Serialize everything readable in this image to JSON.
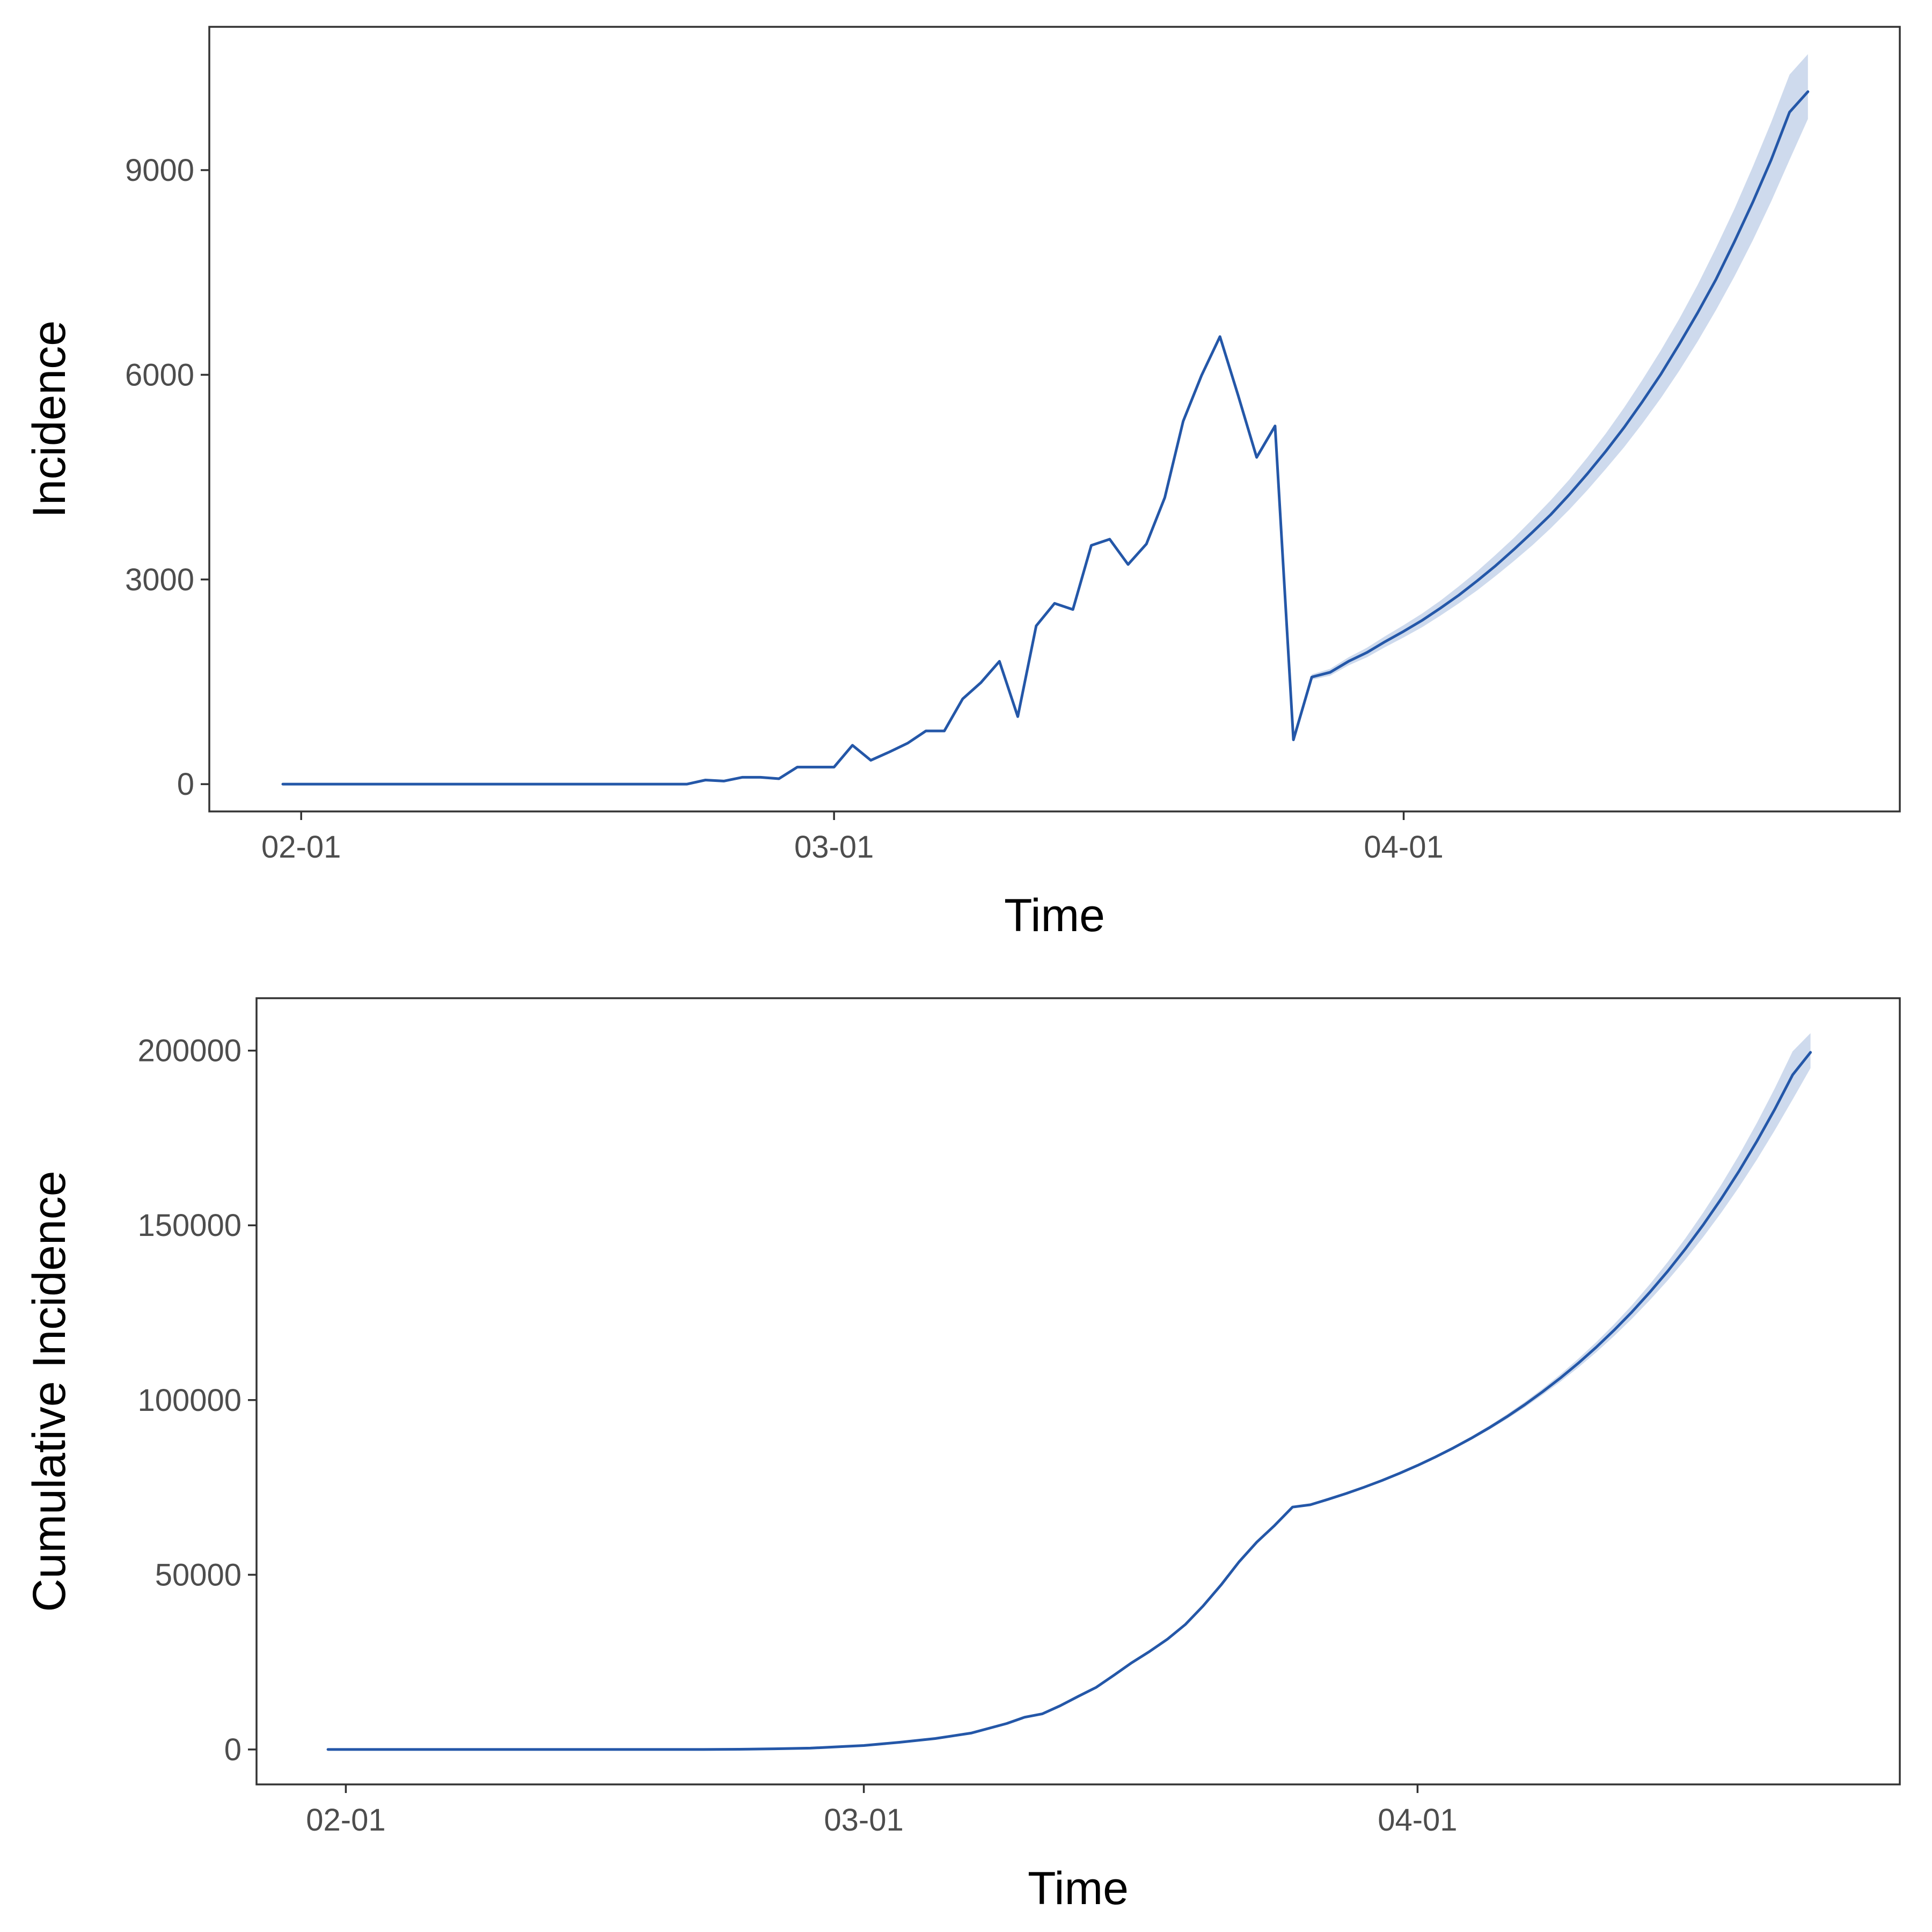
{
  "chart_data": [
    {
      "type": "line",
      "title": "",
      "xlabel": "Time",
      "ylabel": "Incidence",
      "x_axis": "date",
      "x_ticks": [
        "02-01",
        "03-01",
        "04-01"
      ],
      "x_tick_dates": [
        "2020-02-01",
        "2020-03-01",
        "2020-04-01"
      ],
      "xlim": [
        "2020-01-27",
        "2020-04-28"
      ],
      "ylim": [
        -400,
        11100
      ],
      "y_ticks": [
        0,
        3000,
        6000,
        9000
      ],
      "y_tick_labels": [
        "0",
        "3000",
        "6000",
        "9000"
      ],
      "grid": false,
      "line_color": "#2457a8",
      "band_color": "#c6d4ea",
      "series": [
        {
          "values": [
            [
              "2020-01-31",
              0
            ],
            [
              "2020-02-01",
              0
            ],
            [
              "2020-02-02",
              0
            ],
            [
              "2020-02-03",
              0
            ],
            [
              "2020-02-04",
              0
            ],
            [
              "2020-02-05",
              0
            ],
            [
              "2020-02-06",
              0
            ],
            [
              "2020-02-07",
              0
            ],
            [
              "2020-02-08",
              0
            ],
            [
              "2020-02-09",
              0
            ],
            [
              "2020-02-10",
              0
            ],
            [
              "2020-02-11",
              0
            ],
            [
              "2020-02-12",
              0
            ],
            [
              "2020-02-13",
              0
            ],
            [
              "2020-02-14",
              0
            ],
            [
              "2020-02-15",
              0
            ],
            [
              "2020-02-16",
              0
            ],
            [
              "2020-02-17",
              0
            ],
            [
              "2020-02-18",
              0
            ],
            [
              "2020-02-19",
              0
            ],
            [
              "2020-02-20",
              0
            ],
            [
              "2020-02-21",
              0
            ],
            [
              "2020-02-22",
              0
            ],
            [
              "2020-02-23",
              60
            ],
            [
              "2020-02-24",
              45
            ],
            [
              "2020-02-25",
              100
            ],
            [
              "2020-02-26",
              100
            ],
            [
              "2020-02-27",
              80
            ],
            [
              "2020-02-28",
              250
            ],
            [
              "2020-02-29",
              250
            ],
            [
              "2020-03-01",
              250
            ],
            [
              "2020-03-02",
              570
            ],
            [
              "2020-03-03",
              350
            ],
            [
              "2020-03-04",
              470
            ],
            [
              "2020-03-05",
              600
            ],
            [
              "2020-03-06",
              780
            ],
            [
              "2020-03-07",
              780
            ],
            [
              "2020-03-08",
              1250
            ],
            [
              "2020-03-09",
              1490
            ],
            [
              "2020-03-10",
              1800
            ],
            [
              "2020-03-11",
              990
            ],
            [
              "2020-03-12",
              2320
            ],
            [
              "2020-03-13",
              2650
            ],
            [
              "2020-03-14",
              2560
            ],
            [
              "2020-03-15",
              3500
            ],
            [
              "2020-03-16",
              3590
            ],
            [
              "2020-03-17",
              3220
            ],
            [
              "2020-03-18",
              3520
            ],
            [
              "2020-03-19",
              4200
            ],
            [
              "2020-03-20",
              5320
            ],
            [
              "2020-03-21",
              5990
            ],
            [
              "2020-03-22",
              6560
            ],
            [
              "2020-03-23",
              5690
            ],
            [
              "2020-03-24",
              4790
            ],
            [
              "2020-03-25",
              5250
            ],
            [
              "2020-03-26",
              650
            ],
            [
              "2020-03-27",
              1570
            ],
            [
              "2020-03-28",
              1640
            ],
            [
              "2020-03-29",
              1800
            ],
            [
              "2020-03-30",
              1930
            ],
            [
              "2020-03-31",
              2090
            ],
            [
              "2020-04-01",
              2240
            ],
            [
              "2020-04-02",
              2400
            ],
            [
              "2020-04-03",
              2580
            ],
            [
              "2020-04-04",
              2770
            ],
            [
              "2020-04-05",
              2980
            ],
            [
              "2020-04-06",
              3200
            ],
            [
              "2020-04-07",
              3440
            ],
            [
              "2020-04-08",
              3690
            ],
            [
              "2020-04-09",
              3950
            ],
            [
              "2020-04-10",
              4240
            ],
            [
              "2020-04-11",
              4550
            ],
            [
              "2020-04-12",
              4880
            ],
            [
              "2020-04-13",
              5230
            ],
            [
              "2020-04-14",
              5610
            ],
            [
              "2020-04-15",
              6010
            ],
            [
              "2020-04-16",
              6450
            ],
            [
              "2020-04-17",
              6910
            ],
            [
              "2020-04-18",
              7400
            ],
            [
              "2020-04-19",
              7950
            ],
            [
              "2020-04-20",
              8530
            ],
            [
              "2020-04-21",
              9150
            ],
            [
              "2020-04-22",
              9850
            ],
            [
              "2020-04-23",
              10150
            ]
          ],
          "ci_start": "2020-03-27",
          "lower": [
            1530,
            1590,
            1740,
            1860,
            2010,
            2150,
            2300,
            2470,
            2650,
            2840,
            3050,
            3270,
            3500,
            3750,
            4020,
            4310,
            4620,
            4940,
            5290,
            5660,
            6060,
            6490,
            6950,
            7440,
            7970,
            8540,
            9150,
            9750
          ],
          "upper": [
            1610,
            1690,
            1860,
            2000,
            2170,
            2330,
            2500,
            2690,
            2900,
            3120,
            3360,
            3610,
            3880,
            4160,
            4460,
            4790,
            5140,
            5520,
            5930,
            6360,
            6820,
            7320,
            7860,
            8430,
            9050,
            9700,
            10400,
            10700
          ]
        }
      ]
    },
    {
      "type": "line",
      "title": "",
      "xlabel": "Time",
      "ylabel": "Cumulative Incidence",
      "x_axis": "date",
      "x_ticks": [
        "02-01",
        "03-01",
        "04-01"
      ],
      "x_tick_dates": [
        "2020-02-01",
        "2020-03-01",
        "2020-04-01"
      ],
      "xlim": [
        "2020-01-27",
        "2020-04-28"
      ],
      "ylim": [
        -10000,
        215000
      ],
      "y_ticks": [
        0,
        50000,
        100000,
        150000,
        200000
      ],
      "y_tick_labels": [
        "0",
        "50000",
        "100000",
        "150000",
        "200000"
      ],
      "grid": false,
      "line_color": "#2457a8",
      "band_color": "#c6d4ea",
      "series": [
        {
          "values": [
            [
              "2020-01-31",
              0
            ],
            [
              "2020-02-07",
              0
            ],
            [
              "2020-02-14",
              0
            ],
            [
              "2020-02-21",
              0
            ],
            [
              "2020-02-23",
              60
            ],
            [
              "2020-02-25",
              205
            ],
            [
              "2020-02-27",
              385
            ],
            [
              "2020-02-29",
              885
            ],
            [
              "2020-03-01",
              1135
            ],
            [
              "2020-03-03",
              2055
            ],
            [
              "2020-03-05",
              3125
            ],
            [
              "2020-03-07",
              4685
            ],
            [
              "2020-03-09",
              7425
            ],
            [
              "2020-03-10",
              9225
            ],
            [
              "2020-03-11",
              10215
            ],
            [
              "2020-03-12",
              12535
            ],
            [
              "2020-03-13",
              15185
            ],
            [
              "2020-03-14",
              17745
            ],
            [
              "2020-03-15",
              21245
            ],
            [
              "2020-03-16",
              24835
            ],
            [
              "2020-03-17",
              28055
            ],
            [
              "2020-03-18",
              31575
            ],
            [
              "2020-03-19",
              35775
            ],
            [
              "2020-03-20",
              41095
            ],
            [
              "2020-03-21",
              47085
            ],
            [
              "2020-03-22",
              53645
            ],
            [
              "2020-03-23",
              59335
            ],
            [
              "2020-03-24",
              64125
            ],
            [
              "2020-03-25",
              69375
            ],
            [
              "2020-03-26",
              70025
            ],
            [
              "2020-03-27",
              71595
            ],
            [
              "2020-03-28",
              73235
            ],
            [
              "2020-03-29",
              75035
            ],
            [
              "2020-03-30",
              76965
            ],
            [
              "2020-03-31",
              79055
            ],
            [
              "2020-04-01",
              81295
            ],
            [
              "2020-04-02",
              83695
            ],
            [
              "2020-04-03",
              86275
            ],
            [
              "2020-04-04",
              89045
            ],
            [
              "2020-04-05",
              92025
            ],
            [
              "2020-04-06",
              95225
            ],
            [
              "2020-04-07",
              98665
            ],
            [
              "2020-04-08",
              102355
            ],
            [
              "2020-04-09",
              106305
            ],
            [
              "2020-04-10",
              110545
            ],
            [
              "2020-04-11",
              115095
            ],
            [
              "2020-04-12",
              119975
            ],
            [
              "2020-04-13",
              125205
            ],
            [
              "2020-04-14",
              130815
            ],
            [
              "2020-04-15",
              136825
            ],
            [
              "2020-04-16",
              143275
            ],
            [
              "2020-04-17",
              150185
            ],
            [
              "2020-04-18",
              157585
            ],
            [
              "2020-04-19",
              165535
            ],
            [
              "2020-04-20",
              174065
            ],
            [
              "2020-04-21",
              183215
            ],
            [
              "2020-04-22",
              193065
            ],
            [
              "2020-04-23",
              199500
            ]
          ],
          "ci_start": "2020-04-01",
          "lower": [
            81000,
            83350,
            85850,
            88550,
            91450,
            94550,
            97900,
            101450,
            105250,
            109300,
            113650,
            118300,
            123250,
            128550,
            134200,
            140250,
            146700,
            153600,
            160950,
            168800,
            177200,
            186000,
            195000
          ],
          "upper": [
            81600,
            84050,
            86700,
            89550,
            92600,
            95900,
            99450,
            103250,
            107350,
            111800,
            116550,
            121650,
            127150,
            133100,
            139450,
            146300,
            153700,
            161600,
            170100,
            179300,
            189200,
            199800,
            205000
          ]
        }
      ]
    }
  ]
}
